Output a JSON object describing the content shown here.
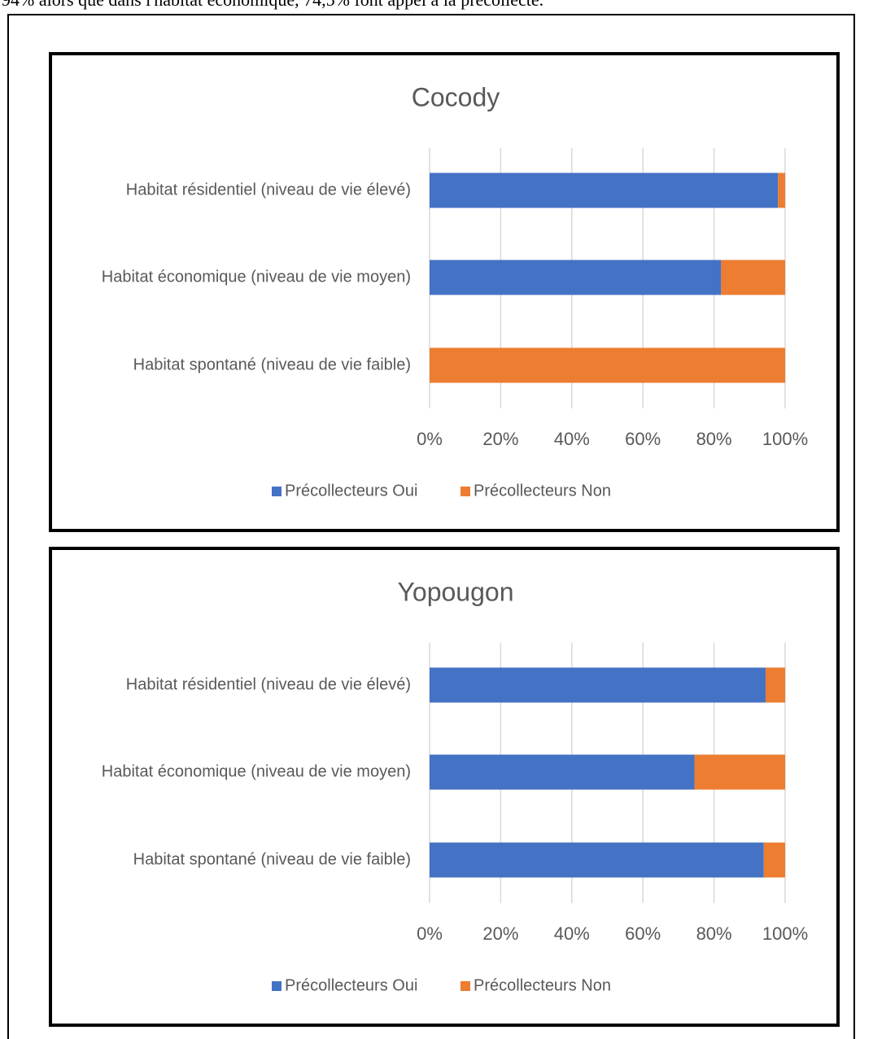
{
  "text": "94% alors que dans l'habitat économique, 74,5% font appel à la précollecte.",
  "chart_data": [
    {
      "type": "stacked_barh",
      "title": "Cocody",
      "categories": [
        "Habitat résidentiel (niveau de vie élevé)",
        "Habitat économique (niveau de vie moyen)",
        "Habitat spontané (niveau de vie faible)"
      ],
      "series": [
        {
          "name": "Précollecteurs Oui",
          "color": "#4472c4",
          "values": [
            98,
            82,
            0
          ]
        },
        {
          "name": "Précollecteurs Non",
          "color": "#ed7d31",
          "values": [
            2,
            18,
            100
          ]
        }
      ],
      "xlim": [
        0,
        100
      ],
      "xticks": [
        {
          "value": 0,
          "label": "0%"
        },
        {
          "value": 20,
          "label": "20%"
        },
        {
          "value": 40,
          "label": "40%"
        },
        {
          "value": 60,
          "label": "60%"
        },
        {
          "value": 80,
          "label": "80%"
        },
        {
          "value": 100,
          "label": "100%"
        }
      ],
      "grid": true,
      "legend": "bottom"
    },
    {
      "type": "stacked_barh",
      "title": "Yopougon",
      "categories": [
        "Habitat résidentiel (niveau de vie élevé)",
        "Habitat économique (niveau de vie moyen)",
        "Habitat spontané (niveau de vie faible)"
      ],
      "series": [
        {
          "name": "Précollecteurs Oui",
          "color": "#4472c4",
          "values": [
            94.5,
            74.5,
            94
          ]
        },
        {
          "name": "Précollecteurs Non",
          "color": "#ed7d31",
          "values": [
            5.5,
            25.5,
            6
          ]
        }
      ],
      "xlim": [
        0,
        100
      ],
      "xticks": [
        {
          "value": 0,
          "label": "0%"
        },
        {
          "value": 20,
          "label": "20%"
        },
        {
          "value": 40,
          "label": "40%"
        },
        {
          "value": 60,
          "label": "60%"
        },
        {
          "value": 80,
          "label": "80%"
        },
        {
          "value": 100,
          "label": "100%"
        }
      ],
      "grid": true,
      "legend": "bottom"
    }
  ]
}
